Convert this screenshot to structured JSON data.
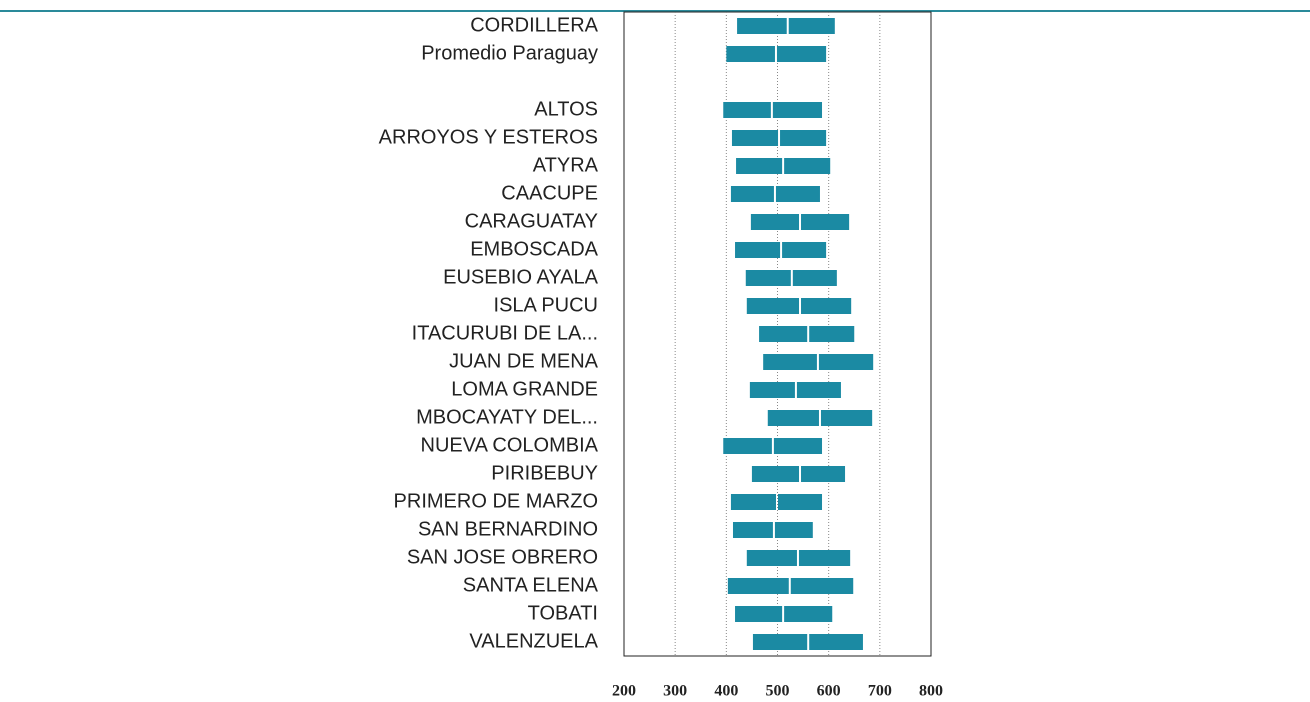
{
  "chart_data": {
    "type": "range",
    "categories": [
      "CORDILLERA",
      "Promedio Paraguay",
      null,
      "ALTOS",
      "ARROYOS Y ESTEROS",
      "ATYRA",
      "CAACUPE",
      "CARAGUATAY",
      "EMBOSCADA",
      "EUSEBIO AYALA",
      "ISLA PUCU",
      "ITACURUBI DE LA...",
      "JUAN DE MENA",
      "LOMA GRANDE",
      "MBOCAYATY DEL...",
      "NUEVA COLOMBIA",
      "PIRIBEBUY",
      "PRIMERO DE MARZO",
      "SAN BERNARDINO",
      "SAN JOSE OBRERO",
      "SANTA ELENA",
      "TOBATI",
      "VALENZUELA"
    ],
    "low": [
      421,
      400,
      null,
      394,
      411,
      419,
      409,
      448,
      417,
      438,
      440,
      464,
      472,
      446,
      481,
      394,
      450,
      409,
      413,
      440,
      403,
      417,
      452
    ],
    "median": [
      520,
      497,
      null,
      489,
      503,
      511,
      495,
      544,
      507,
      528,
      544,
      560,
      579,
      536,
      583,
      491,
      544,
      499,
      493,
      540,
      524,
      511,
      560
    ],
    "high": [
      612,
      595,
      null,
      587,
      595,
      603,
      583,
      640,
      595,
      616,
      644,
      650,
      687,
      624,
      685,
      587,
      632,
      587,
      569,
      642,
      648,
      607,
      667
    ],
    "color": "#1b8aa3",
    "xlim": [
      200,
      800
    ],
    "xticks": [
      200,
      300,
      400,
      500,
      600,
      700,
      800
    ],
    "grid": true
  }
}
